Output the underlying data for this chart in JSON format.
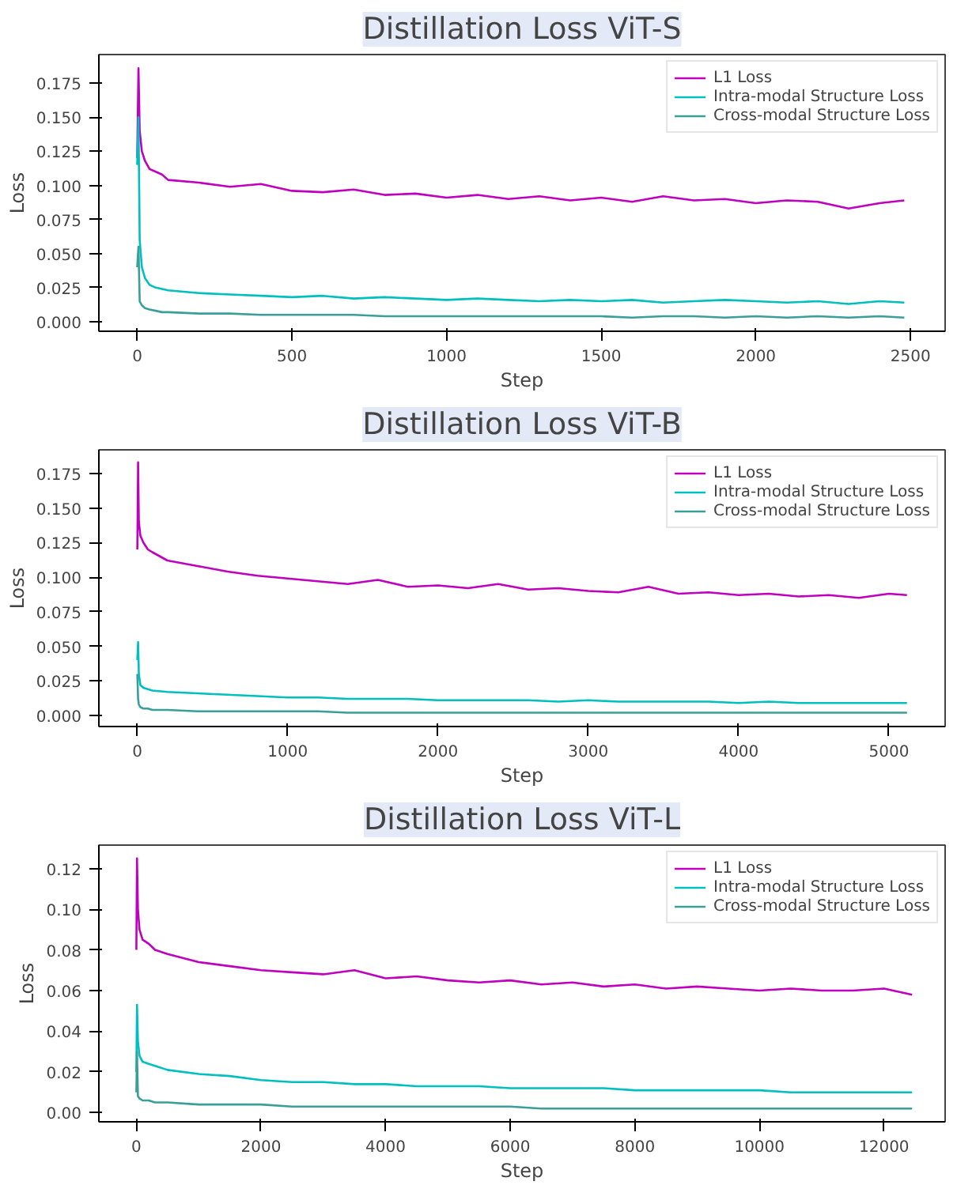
{
  "chart_data": [
    {
      "type": "line",
      "title": "Distillation Loss ViT-S",
      "xlabel": "Step",
      "ylabel": "Loss",
      "legend": "top right",
      "grid": false,
      "xlim": [
        -124,
        2612
      ],
      "ylim": [
        -0.007,
        0.196
      ],
      "xticks": [
        0,
        500,
        1000,
        1500,
        2000,
        2500
      ],
      "yticks": [
        {
          "value": 0,
          "label": "0.000"
        },
        0.025,
        {
          "value": 0.05,
          "label": "0.050"
        },
        0.075,
        {
          "value": 0.1,
          "label": "0.100"
        },
        0.125,
        {
          "value": 0.15,
          "label": "0.150"
        },
        0.175
      ],
      "x": [
        0,
        4,
        8,
        15,
        25,
        40,
        60,
        80,
        100,
        200,
        300,
        400,
        500,
        600,
        700,
        800,
        900,
        1000,
        1100,
        1200,
        1300,
        1400,
        1500,
        1600,
        1700,
        1800,
        1900,
        2000,
        2100,
        2200,
        2300,
        2400,
        2480
      ],
      "series": [
        {
          "name": "L1 Loss",
          "color": "#bf00bf",
          "values": [
            0.12,
            0.186,
            0.14,
            0.125,
            0.118,
            0.112,
            0.11,
            0.108,
            0.104,
            0.102,
            0.099,
            0.101,
            0.096,
            0.095,
            0.097,
            0.093,
            0.094,
            0.091,
            0.093,
            0.09,
            0.092,
            0.089,
            0.091,
            0.088,
            0.092,
            0.089,
            0.09,
            0.087,
            0.089,
            0.088,
            0.083,
            0.087,
            0.089
          ]
        },
        {
          "name": "Intra-modal Structure Loss",
          "color": "#00bfbf",
          "values": [
            0.115,
            0.15,
            0.06,
            0.04,
            0.032,
            0.027,
            0.025,
            0.024,
            0.023,
            0.021,
            0.02,
            0.019,
            0.018,
            0.019,
            0.017,
            0.018,
            0.017,
            0.016,
            0.017,
            0.016,
            0.015,
            0.016,
            0.015,
            0.016,
            0.014,
            0.015,
            0.016,
            0.015,
            0.014,
            0.015,
            0.013,
            0.015,
            0.014
          ]
        },
        {
          "name": "Cross-modal Structure Loss",
          "color": "#3a9e9a",
          "values": [
            0.04,
            0.055,
            0.015,
            0.012,
            0.01,
            0.009,
            0.008,
            0.007,
            0.007,
            0.006,
            0.006,
            0.005,
            0.005,
            0.005,
            0.005,
            0.004,
            0.004,
            0.004,
            0.004,
            0.004,
            0.004,
            0.004,
            0.004,
            0.003,
            0.004,
            0.004,
            0.003,
            0.004,
            0.003,
            0.004,
            0.003,
            0.004,
            0.003
          ]
        }
      ]
    },
    {
      "type": "line",
      "title": "Distillation Loss ViT-B",
      "xlabel": "Step",
      "ylabel": "Loss",
      "legend": "top right",
      "grid": false,
      "xlim": [
        -256,
        5374
      ],
      "ylim": [
        -0.008,
        0.192
      ],
      "xticks": [
        0,
        1000,
        2000,
        3000,
        4000,
        5000
      ],
      "yticks": [
        {
          "value": 0,
          "label": "0.000"
        },
        0.025,
        {
          "value": 0.05,
          "label": "0.050"
        },
        0.075,
        {
          "value": 0.1,
          "label": "0.100"
        },
        0.125,
        {
          "value": 0.15,
          "label": "0.150"
        },
        0.175
      ],
      "x": [
        0,
        5,
        10,
        20,
        40,
        70,
        100,
        200,
        400,
        600,
        800,
        1000,
        1200,
        1400,
        1600,
        1800,
        2000,
        2200,
        2400,
        2600,
        2800,
        3000,
        3200,
        3400,
        3600,
        3800,
        4000,
        4200,
        4400,
        4600,
        4800,
        5000,
        5120
      ],
      "series": [
        {
          "name": "L1 Loss",
          "color": "#bf00bf",
          "values": [
            0.12,
            0.183,
            0.14,
            0.13,
            0.125,
            0.12,
            0.118,
            0.112,
            0.108,
            0.104,
            0.101,
            0.099,
            0.097,
            0.095,
            0.098,
            0.093,
            0.094,
            0.092,
            0.095,
            0.091,
            0.092,
            0.09,
            0.089,
            0.093,
            0.088,
            0.089,
            0.087,
            0.088,
            0.086,
            0.087,
            0.085,
            0.088,
            0.087
          ]
        },
        {
          "name": "Intra-modal Structure Loss",
          "color": "#00bfbf",
          "values": [
            0.04,
            0.053,
            0.03,
            0.022,
            0.02,
            0.019,
            0.018,
            0.017,
            0.016,
            0.015,
            0.014,
            0.013,
            0.013,
            0.012,
            0.012,
            0.012,
            0.011,
            0.011,
            0.011,
            0.011,
            0.01,
            0.011,
            0.01,
            0.01,
            0.01,
            0.01,
            0.009,
            0.01,
            0.009,
            0.009,
            0.009,
            0.009,
            0.009
          ]
        },
        {
          "name": "Cross-modal Structure Loss",
          "color": "#3a9e9a",
          "values": [
            0.03,
            0.012,
            0.008,
            0.006,
            0.005,
            0.005,
            0.004,
            0.004,
            0.003,
            0.003,
            0.003,
            0.003,
            0.003,
            0.002,
            0.002,
            0.002,
            0.002,
            0.002,
            0.002,
            0.002,
            0.002,
            0.002,
            0.002,
            0.002,
            0.002,
            0.002,
            0.002,
            0.002,
            0.002,
            0.002,
            0.002,
            0.002,
            0.002
          ]
        }
      ]
    },
    {
      "type": "line",
      "title": "Distillation Loss ViT-L",
      "xlabel": "Step",
      "ylabel": "Loss",
      "legend": "top right",
      "grid": false,
      "xlim": [
        -602,
        12980
      ],
      "ylim": [
        -0.0045,
        0.1315
      ],
      "xticks": [
        0,
        2000,
        4000,
        6000,
        8000,
        10000,
        12000
      ],
      "yticks": [
        {
          "value": 0,
          "label": "0.00"
        },
        {
          "value": 0.02,
          "label": "0.02"
        },
        {
          "value": 0.04,
          "label": "0.04"
        },
        {
          "value": 0.06,
          "label": "0.06"
        },
        {
          "value": 0.08,
          "label": "0.08"
        },
        {
          "value": 0.1,
          "label": "0.10"
        },
        {
          "value": 0.12,
          "label": "0.12"
        }
      ],
      "x": [
        0,
        10,
        25,
        50,
        100,
        200,
        300,
        500,
        1000,
        1500,
        2000,
        2500,
        3000,
        3500,
        4000,
        4500,
        5000,
        5500,
        6000,
        6500,
        7000,
        7500,
        8000,
        8500,
        9000,
        9500,
        10000,
        10500,
        11000,
        11500,
        12000,
        12450
      ],
      "series": [
        {
          "name": "L1 Loss",
          "color": "#bf00bf",
          "values": [
            0.08,
            0.125,
            0.1,
            0.09,
            0.085,
            0.083,
            0.08,
            0.078,
            0.074,
            0.072,
            0.07,
            0.069,
            0.068,
            0.07,
            0.066,
            0.067,
            0.065,
            0.064,
            0.065,
            0.063,
            0.064,
            0.062,
            0.063,
            0.061,
            0.062,
            0.061,
            0.06,
            0.061,
            0.06,
            0.06,
            0.061,
            0.058
          ]
        },
        {
          "name": "Intra-modal Structure Loss",
          "color": "#00bfbf",
          "values": [
            0.02,
            0.053,
            0.035,
            0.028,
            0.025,
            0.024,
            0.023,
            0.021,
            0.019,
            0.018,
            0.016,
            0.015,
            0.015,
            0.014,
            0.014,
            0.013,
            0.013,
            0.013,
            0.012,
            0.012,
            0.012,
            0.012,
            0.011,
            0.011,
            0.011,
            0.011,
            0.011,
            0.01,
            0.01,
            0.01,
            0.01,
            0.01
          ]
        },
        {
          "name": "Cross-modal Structure Loss",
          "color": "#3a9e9a",
          "values": [
            0.01,
            0.03,
            0.008,
            0.007,
            0.006,
            0.006,
            0.005,
            0.005,
            0.004,
            0.004,
            0.004,
            0.003,
            0.003,
            0.003,
            0.003,
            0.003,
            0.003,
            0.003,
            0.003,
            0.002,
            0.002,
            0.002,
            0.002,
            0.002,
            0.002,
            0.002,
            0.002,
            0.002,
            0.002,
            0.002,
            0.002,
            0.002
          ]
        }
      ]
    }
  ]
}
